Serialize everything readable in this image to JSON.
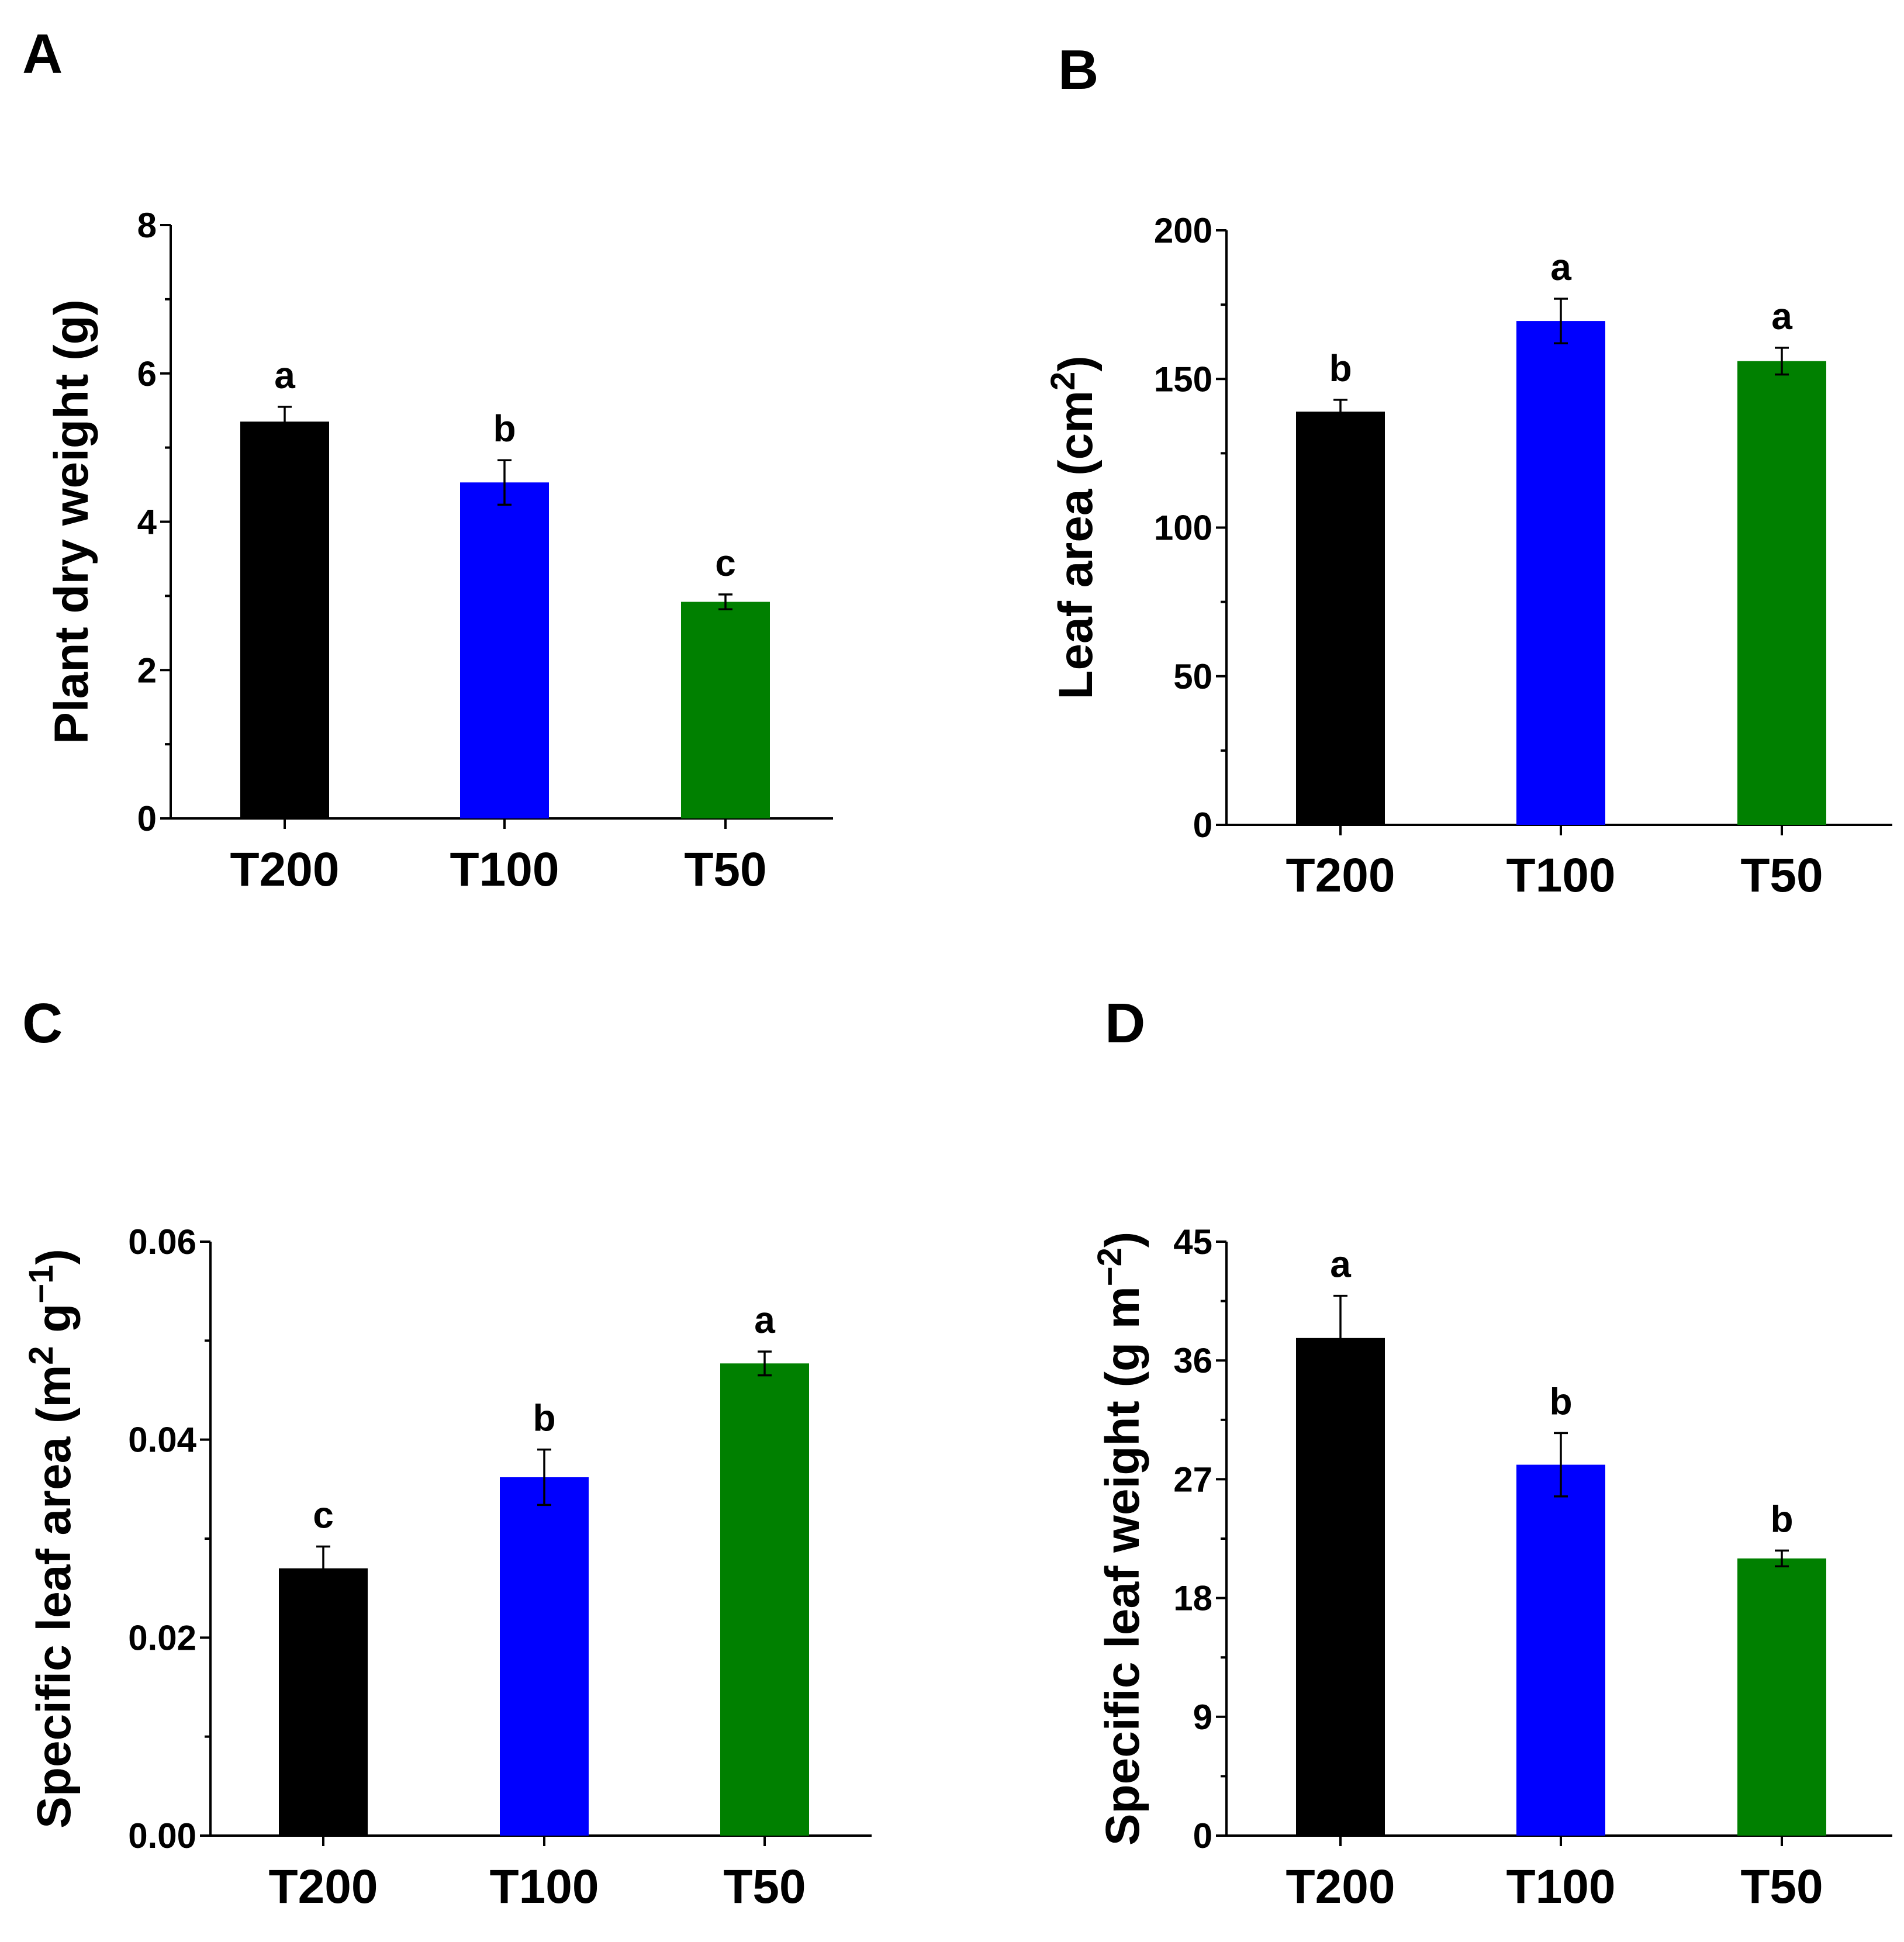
{
  "chart_data": [
    {
      "type": "bar",
      "panel": "A",
      "title": "",
      "xlabel": "",
      "ylabel_parts": [
        {
          "t": "Plant dry weight (g)"
        }
      ],
      "ylim": [
        0,
        8
      ],
      "yticks": [
        0,
        2,
        4,
        6,
        8
      ],
      "yticks_text": [
        "0",
        "2",
        "4",
        "6",
        "8"
      ],
      "categories": [
        "T200",
        "T100",
        "T50"
      ],
      "values": [
        5.35,
        4.53,
        2.92
      ],
      "errors": [
        0.2,
        0.3,
        0.1
      ],
      "significance": [
        "a",
        "b",
        "c"
      ],
      "colors": [
        "#000000",
        "#0000ff",
        "#008000"
      ]
    },
    {
      "type": "bar",
      "panel": "B",
      "title": "",
      "xlabel": "",
      "ylabel_parts": [
        {
          "t": "Leaf area (cm"
        },
        {
          "t": "2",
          "sup": true
        },
        {
          "t": ")"
        }
      ],
      "ylim": [
        0,
        200
      ],
      "yticks": [
        0,
        50,
        100,
        150,
        200
      ],
      "yticks_text": [
        "0",
        "50",
        "100",
        "150",
        "200"
      ],
      "categories": [
        "T200",
        "T100",
        "T50"
      ],
      "values": [
        139,
        169.5,
        156
      ],
      "errors": [
        4,
        7.5,
        4.5
      ],
      "significance": [
        "b",
        "a",
        "a"
      ],
      "colors": [
        "#000000",
        "#0000ff",
        "#008000"
      ]
    },
    {
      "type": "bar",
      "panel": "C",
      "title": "",
      "xlabel": "",
      "ylabel_parts": [
        {
          "t": "Specific leaf area (m"
        },
        {
          "t": "2",
          "sup": true
        },
        {
          "t": " g"
        },
        {
          "t": "−1",
          "sup": true
        },
        {
          "t": ")"
        }
      ],
      "ylim": [
        0,
        0.06
      ],
      "yticks": [
        0,
        0.02,
        0.04,
        0.06
      ],
      "yticks_text": [
        "0.00",
        "0.02",
        "0.04",
        "0.06"
      ],
      "categories": [
        "T200",
        "T100",
        "T50"
      ],
      "values": [
        0.027,
        0.0362,
        0.0477
      ],
      "errors": [
        0.0022,
        0.0028,
        0.0012
      ],
      "significance": [
        "c",
        "b",
        "a"
      ],
      "colors": [
        "#000000",
        "#0000ff",
        "#008000"
      ]
    },
    {
      "type": "bar",
      "panel": "D",
      "title": "",
      "xlabel": "",
      "ylabel_parts": [
        {
          "t": "Specific leaf weight (g m"
        },
        {
          "t": "−2",
          "sup": true
        },
        {
          "t": ")"
        }
      ],
      "ylim": [
        0,
        45
      ],
      "yticks": [
        0,
        9,
        18,
        27,
        36,
        45
      ],
      "yticks_text": [
        "0",
        "9",
        "18",
        "27",
        "36",
        "45"
      ],
      "categories": [
        "T200",
        "T100",
        "T50"
      ],
      "values": [
        37.7,
        28.1,
        21
      ],
      "errors": [
        3.2,
        2.4,
        0.6
      ],
      "significance": [
        "a",
        "b",
        "b"
      ],
      "colors": [
        "#000000",
        "#0000ff",
        "#008000"
      ]
    }
  ]
}
